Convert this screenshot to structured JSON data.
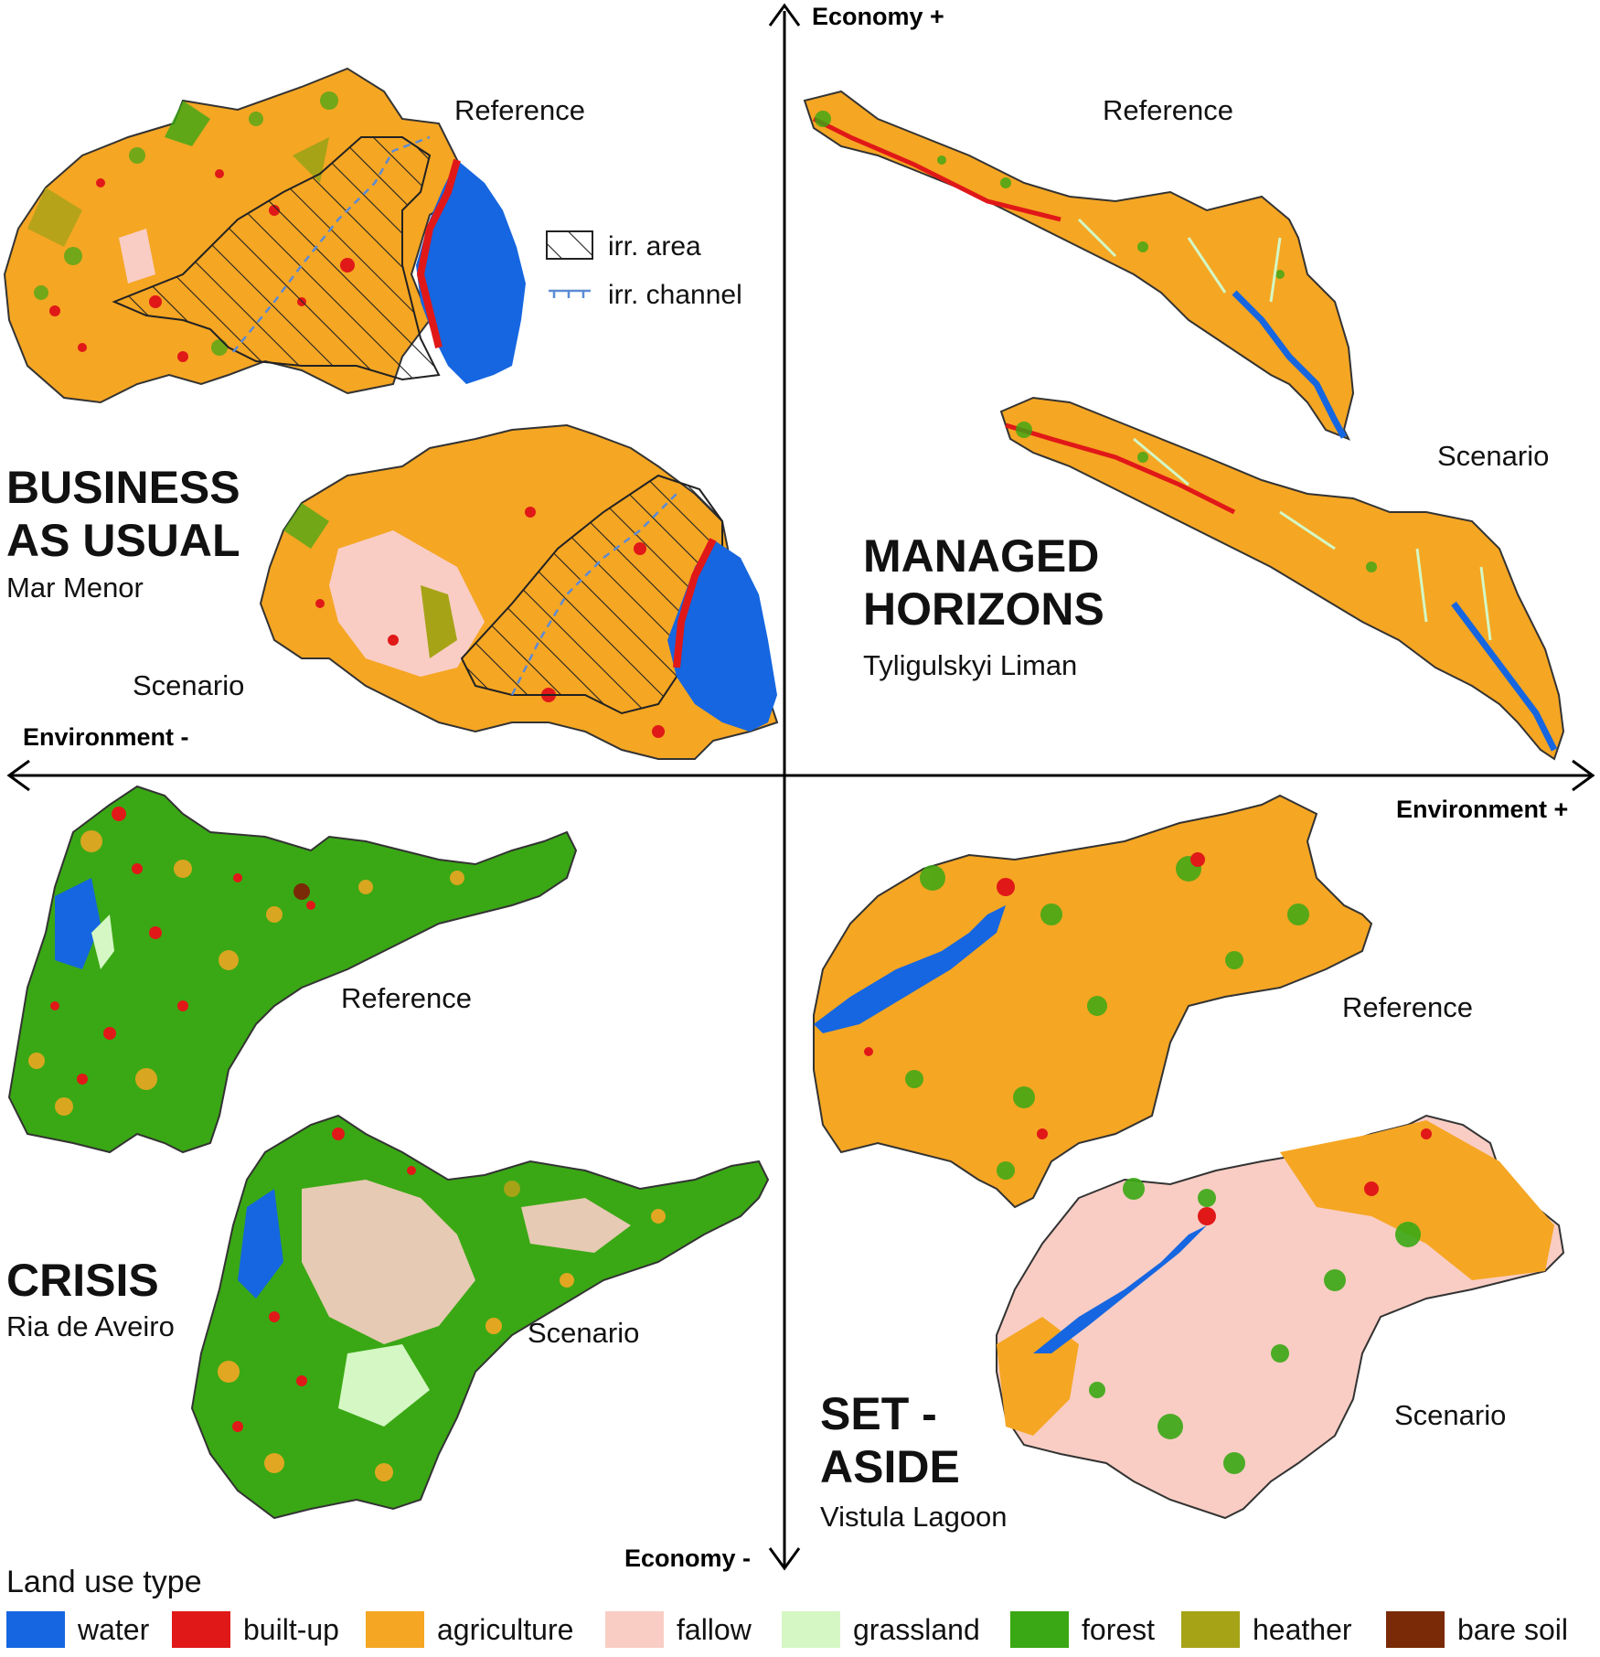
{
  "axes": {
    "economy_plus": "Economy +",
    "economy_minus": "Economy -",
    "environment_plus": "Environment +",
    "environment_minus": "Environment -"
  },
  "scenarios": {
    "business_as_usual": {
      "title_line1": "BUSINESS",
      "title_line2": "AS USUAL",
      "site": "Mar Menor",
      "reference_label": "Reference",
      "scenario_label": "Scenario",
      "legend": {
        "irr_area": "irr. area",
        "irr_channel": "irr. channel"
      }
    },
    "managed_horizons": {
      "title_line1": "MANAGED",
      "title_line2": "HORIZONS",
      "site": "Tyligulskyi Liman",
      "reference_label": "Reference",
      "scenario_label": "Scenario"
    },
    "crisis": {
      "title_line1": "CRISIS",
      "site": "Ria de Aveiro",
      "reference_label": "Reference",
      "scenario_label": "Scenario"
    },
    "set_aside": {
      "title_line1": "SET -",
      "title_line2": "ASIDE",
      "site": "Vistula Lagoon",
      "reference_label": "Reference",
      "scenario_label": "Scenario"
    }
  },
  "legend": {
    "title": "Land use type",
    "items": [
      {
        "label": "water",
        "color": "#1566e0"
      },
      {
        "label": "built-up",
        "color": "#e01818"
      },
      {
        "label": "agriculture",
        "color": "#f5a623"
      },
      {
        "label": "fallow",
        "color": "#f9cdc4"
      },
      {
        "label": "grassland",
        "color": "#d4f7c4"
      },
      {
        "label": "forest",
        "color": "#3aa814"
      },
      {
        "label": "heather",
        "color": "#a6a317"
      },
      {
        "label": "bare soil",
        "color": "#7a2a06"
      }
    ]
  }
}
